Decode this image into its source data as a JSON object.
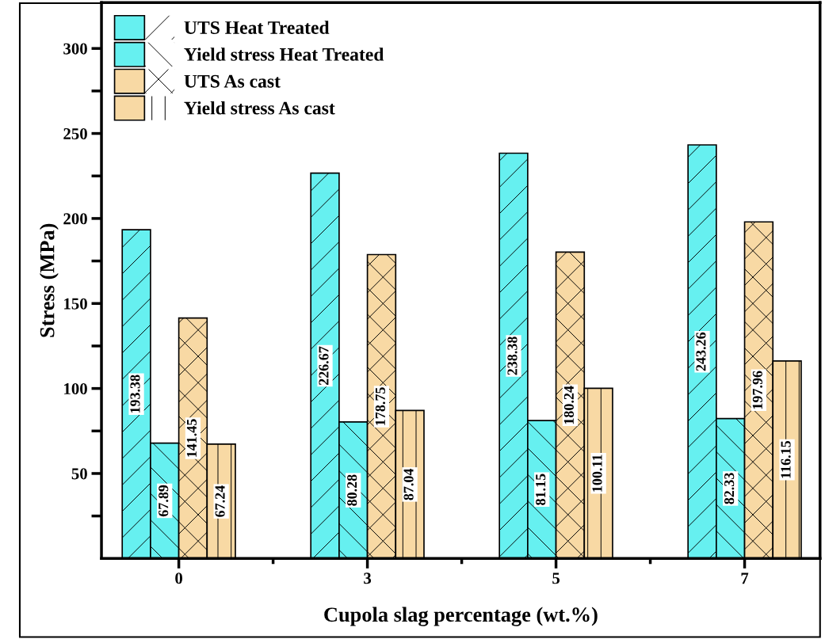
{
  "chart_data": {
    "type": "bar",
    "xlabel": "Cupola slag percentage (wt.%)",
    "ylabel": "Stress (MPa)",
    "categories": [
      "0",
      "3",
      "5",
      "7"
    ],
    "series": [
      {
        "name": "UTS Heat Treated",
        "color": "#66f0f0",
        "values": [
          193.38,
          226.67,
          238.38,
          243.26
        ]
      },
      {
        "name": "Yield stress Heat Treated",
        "color": "#66f0f0",
        "values": [
          67.89,
          80.28,
          81.15,
          82.33
        ]
      },
      {
        "name": "UTS As cast",
        "color": "#f8d9a4",
        "values": [
          141.45,
          178.75,
          180.24,
          197.96
        ]
      },
      {
        "name": "Yield stress As cast",
        "color": "#f8d9a4",
        "values": [
          67.24,
          87.04,
          100.11,
          116.15
        ]
      }
    ],
    "ylim": [
      0,
      327
    ],
    "yticks": [
      {
        "value": 25,
        "label": null
      },
      50,
      {
        "value": 75,
        "label": null
      },
      100,
      {
        "value": 125,
        "label": null
      },
      150,
      {
        "value": 175,
        "label": null
      },
      200,
      {
        "value": 225,
        "label": null
      },
      250,
      {
        "value": 275,
        "label": null
      },
      300
    ],
    "data_labels": true,
    "legend": "top left",
    "grid": false
  }
}
